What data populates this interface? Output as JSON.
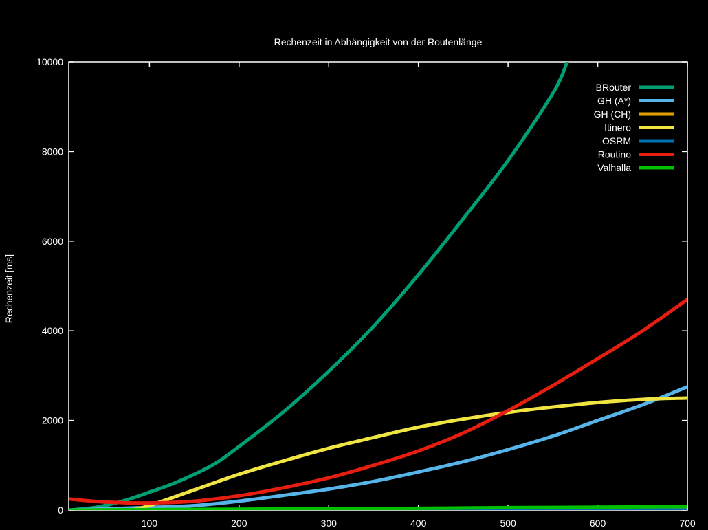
{
  "chart_data": {
    "type": "line",
    "title": "Rechenzeit in Abhängigkeit von der Routenlänge",
    "xlabel": "",
    "ylabel": "Rechenzeit [ms]",
    "xlim": [
      10,
      700
    ],
    "ylim": [
      0,
      10000
    ],
    "x_ticks": [
      100,
      200,
      300,
      400,
      500,
      600,
      700
    ],
    "y_ticks": [
      0,
      2000,
      4000,
      6000,
      8000,
      10000
    ],
    "background": "#000000",
    "axis_color": "#ffffff",
    "grid": false,
    "legend_position": "top-right",
    "series": [
      {
        "name": "BRouter",
        "color": "#009e73",
        "points": [
          [
            10,
            0
          ],
          [
            40,
            60
          ],
          [
            70,
            200
          ],
          [
            100,
            400
          ],
          [
            130,
            620
          ],
          [
            170,
            1000
          ],
          [
            200,
            1420
          ],
          [
            250,
            2200
          ],
          [
            300,
            3100
          ],
          [
            350,
            4100
          ],
          [
            400,
            5250
          ],
          [
            450,
            6500
          ],
          [
            500,
            7800
          ],
          [
            550,
            9300
          ],
          [
            566,
            10000
          ]
        ]
      },
      {
        "name": "GH (A*)",
        "color": "#56b4e9",
        "points": [
          [
            10,
            0
          ],
          [
            100,
            60
          ],
          [
            150,
            100
          ],
          [
            200,
            200
          ],
          [
            250,
            330
          ],
          [
            300,
            470
          ],
          [
            350,
            640
          ],
          [
            400,
            850
          ],
          [
            450,
            1080
          ],
          [
            500,
            1350
          ],
          [
            550,
            1650
          ],
          [
            600,
            2000
          ],
          [
            650,
            2350
          ],
          [
            700,
            2750
          ]
        ]
      },
      {
        "name": "GH (CH)",
        "color": "#e69f00",
        "points": [
          [
            10,
            0
          ],
          [
            100,
            2
          ],
          [
            200,
            3
          ],
          [
            300,
            4
          ],
          [
            400,
            5
          ],
          [
            500,
            6
          ],
          [
            600,
            7
          ],
          [
            700,
            8
          ]
        ]
      },
      {
        "name": "Itinero",
        "color": "#f0e442",
        "points": [
          [
            80,
            0
          ],
          [
            100,
            100
          ],
          [
            150,
            450
          ],
          [
            200,
            800
          ],
          [
            250,
            1100
          ],
          [
            300,
            1380
          ],
          [
            350,
            1620
          ],
          [
            400,
            1850
          ],
          [
            450,
            2030
          ],
          [
            500,
            2180
          ],
          [
            550,
            2300
          ],
          [
            600,
            2400
          ],
          [
            650,
            2470
          ],
          [
            700,
            2500
          ]
        ]
      },
      {
        "name": "OSRM",
        "color": "#0072b2",
        "points": [
          [
            10,
            0
          ],
          [
            100,
            0
          ],
          [
            200,
            0
          ],
          [
            300,
            0
          ],
          [
            400,
            0
          ],
          [
            500,
            0
          ],
          [
            600,
            0
          ],
          [
            700,
            0
          ]
        ]
      },
      {
        "name": "Routino",
        "color": "#e51e10",
        "points": [
          [
            10,
            250
          ],
          [
            50,
            180
          ],
          [
            100,
            160
          ],
          [
            150,
            200
          ],
          [
            200,
            320
          ],
          [
            250,
            500
          ],
          [
            300,
            720
          ],
          [
            350,
            1000
          ],
          [
            400,
            1320
          ],
          [
            450,
            1720
          ],
          [
            500,
            2220
          ],
          [
            550,
            2780
          ],
          [
            600,
            3380
          ],
          [
            650,
            4000
          ],
          [
            700,
            4700
          ]
        ]
      },
      {
        "name": "Valhalla",
        "color": "#00c000",
        "points": [
          [
            10,
            0
          ],
          [
            100,
            10
          ],
          [
            200,
            20
          ],
          [
            300,
            30
          ],
          [
            400,
            40
          ],
          [
            500,
            55
          ],
          [
            600,
            65
          ],
          [
            700,
            80
          ]
        ]
      }
    ]
  }
}
